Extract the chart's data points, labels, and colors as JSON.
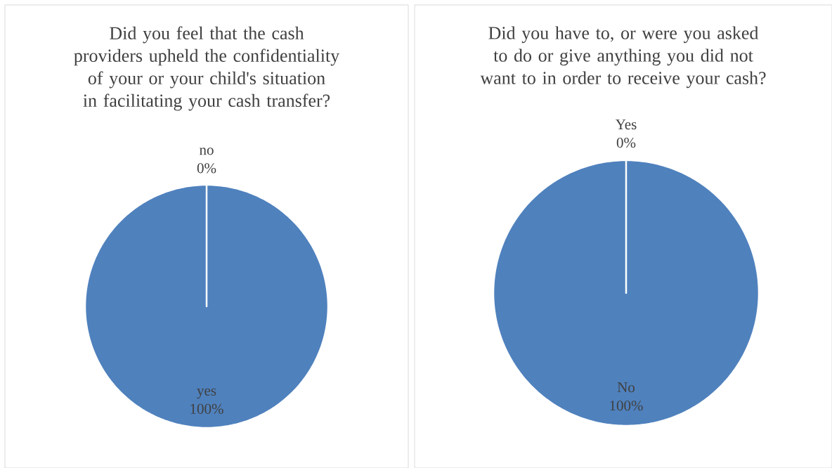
{
  "chart_data": [
    {
      "type": "pie",
      "title": "Did you feel that the cash providers upheld the confidentiality of your or your child's situation in facilitating your cash transfer?",
      "categories": [
        "no",
        "yes"
      ],
      "values": [
        0,
        100
      ],
      "colors": [
        "#4f81bd",
        "#4f81bd"
      ],
      "value_labels": [
        "0%",
        "100%"
      ]
    },
    {
      "type": "pie",
      "title": "Did you have to, or were you asked to do or give anything you did not want to in order to receive your cash?",
      "categories": [
        "Yes",
        "No"
      ],
      "values": [
        0,
        100
      ],
      "colors": [
        "#4f81bd",
        "#4f81bd"
      ],
      "value_labels": [
        "0%",
        "100%"
      ]
    }
  ]
}
